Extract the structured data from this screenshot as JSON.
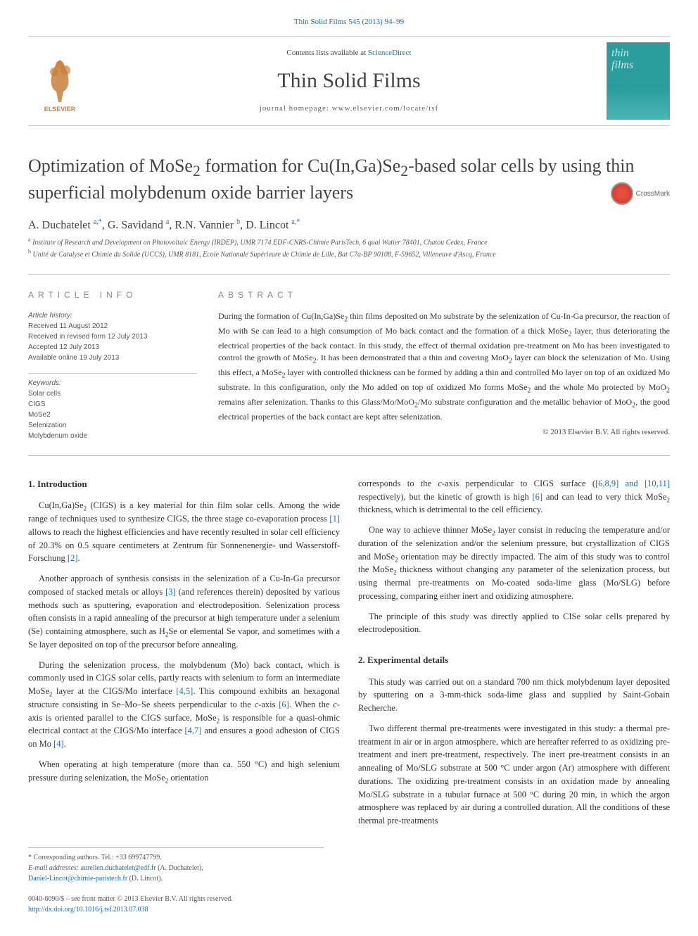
{
  "header": {
    "top_link": "Thin Solid Films 545 (2013) 94–99",
    "contents_prefix": "Contents lists available at ",
    "contents_link": "ScienceDirect",
    "journal_title": "Thin Solid Films",
    "homepage_label": "journal homepage: www.elsevier.com/locate/tsf",
    "cover_title_1": "thin",
    "cover_title_2": "films",
    "publisher": "ELSEVIER"
  },
  "article": {
    "title_html": "Optimization of MoSe<sub>2</sub> formation for Cu(In,Ga)Se<sub>2</sub>-based solar cells by using thin superficial molybdenum oxide barrier layers",
    "crossmark_label": "CrossMark",
    "authors_html": "A. Duchatelet <sup>a,*</sup>, G. Savidand <sup>a</sup>, R.N. Vannier <sup>b</sup>, D. Lincot <sup>a,*</sup>",
    "affiliations": [
      "a Institute of Research and Development on Photovoltaic Energy (IRDEP), UMR 7174 EDF-CNRS-Chimie ParisTech, 6 quai Watier 78401, Chatou Cedex, France",
      "b Unité de Catalyse et Chimie du Solide (UCCS), UMR 8181, Ecole Nationale Supérieure de Chimie de Lille, Bat C7a-BP 90108, F-59652, Villeneuve d'Ascq, France"
    ]
  },
  "info": {
    "heading": "ARTICLE INFO",
    "history_head": "Article history:",
    "history": [
      "Received 11 August 2012",
      "Received in revised form 12 July 2013",
      "Accepted 12 July 2013",
      "Available online 19 July 2013"
    ],
    "keywords_head": "Keywords:",
    "keywords": [
      "Solar cells",
      "CIGS",
      "MoSe2",
      "Selenization",
      "Molybdenum oxide"
    ]
  },
  "abstract": {
    "heading": "ABSTRACT",
    "text_html": "During the formation of Cu(In,Ga)Se<sub>2</sub> thin films deposited on Mo substrate by the selenization of Cu-In-Ga precursor, the reaction of Mo with Se can lead to a high consumption of Mo back contact and the formation of a thick MoSe<sub>2</sub> layer, thus deteriorating the electrical properties of the back contact. In this study, the effect of thermal oxidation pre-treatment on Mo has been investigated to control the growth of MoSe<sub>2</sub>. It has been demonstrated that a thin and covering MoO<sub>2</sub> layer can block the selenization of Mo. Using this effect, a MoSe<sub>2</sub> layer with controlled thickness can be formed by adding a thin and controlled Mo layer on top of an oxidized Mo substrate. In this configuration, only the Mo added on top of oxidized Mo forms MoSe<sub>2</sub> and the whole Mo protected by MoO<sub>2</sub> remains after selenization. Thanks to this Glass/Mo/MoO<sub>2</sub>/Mo substrate configuration and the metallic behavior of MoO<sub>2</sub>, the good electrical properties of the back contact are kept after selenization.",
    "copyright": "© 2013 Elsevier B.V. All rights reserved."
  },
  "body": {
    "section1_heading": "1. Introduction",
    "col1_paras_html": [
      "Cu(In,Ga)Se<sub>2</sub> (CIGS) is a key material for thin film solar cells. Among the wide range of techniques used to synthesize CIGS, the three stage co-evaporation process <span class='ref'>[1]</span> allows to reach the highest efficiencies and have recently resulted in solar cell efficiency of 20.3% on 0.5 square centimeters at Zentrum für Sonnenenergie- und Wasserstoff-Forschung <span class='ref'>[2]</span>.",
      "Another approach of synthesis consists in the selenization of a Cu-In-Ga precursor composed of stacked metals or alloys <span class='ref'>[3]</span> (and references therein) deposited by various methods such as sputtering, evaporation and electrodeposition. Selenization process often consists in a rapid annealing of the precursor at high temperature under a selenium (Se) containing atmosphere, such as H<sub>2</sub>Se or elemental Se vapor, and sometimes with a Se layer deposited on top of the precursor before annealing.",
      "During the selenization process, the molybdenum (Mo) back contact, which is commonly used in CIGS solar cells, partly reacts with selenium to form an intermediate MoSe<sub>2</sub> layer at the CIGS/Mo interface <span class='ref'>[4,5]</span>. This compound exhibits an hexagonal structure consisting in Se–Mo–Se sheets perpendicular to the <i>c</i>-axis <span class='ref'>[6]</span>. When the <i>c</i>-axis is oriented parallel to the CIGS surface, MoSe<sub>2</sub> is responsible for a quasi-ohmic electrical contact at the CIGS/Mo interface <span class='ref'>[4,7]</span> and ensures a good adhesion of CIGS on Mo <span class='ref'>[4]</span>.",
      "When operating at high temperature (more than ca. 550 °C) and high selenium pressure during selenization, the MoSe<sub>2</sub> orientation"
    ],
    "col2_top_paras_html": [
      "corresponds to the <i>c</i>-axis perpendicular to CIGS surface (<span class='ref'>[6,8,9] and [10,11]</span> respectively), but the kinetic of growth is high <span class='ref'>[6]</span> and can lead to very thick MoSe<sub>2</sub> thickness, which is detrimental to the cell efficiency.",
      "One way to achieve thinner MoSe<sub>2</sub> layer consist in reducing the temperature and/or duration of the selenization and/or the selenium pressure, but crystallization of CIGS and MoSe<sub>2</sub> orientation may be directly impacted. The aim of this study was to control the MoSe<sub>2</sub> thickness without changing any parameter of the selenization process, but using thermal pre-treatments on Mo-coated soda-lime glass (Mo/SLG) before processing, comparing either inert and oxidizing atmosphere.",
      "The principle of this study was directly applied to CISe solar cells prepared by electrodeposition."
    ],
    "section2_heading": "2. Experimental details",
    "col2_sec2_paras_html": [
      "This study was carried out on a standard 700 nm thick molybdenum layer deposited by sputtering on a 3-mm-thick soda-lime glass and supplied by Saint-Gobain Recherche.",
      "Two different thermal pre-treatments were investigated in this study: a thermal pre-treatment in air or in argon atmosphere, which are hereafter referred to as oxidizing pre-treatment and inert pre-treatment, respectively. The inert pre-treatment consists in an annealing of Mo/SLG substrate at 500 °C under argon (Ar) atmosphere with different durations. The oxidizing pre-treatment consists in an oxidation made by annealing Mo/SLG substrate in a tubular furnace at 500 °C during 20 min, in which the argon atmosphere was replaced by air during a controlled duration. All the conditions of these thermal pre-treatments"
    ]
  },
  "footnotes": {
    "corresponding": "* Corresponding authors. Tel.: +33 699747799.",
    "email_label": "E-mail addresses: ",
    "email1": "aurelien.duchatelet@edf.fr",
    "email1_name": " (A. Duchatelet),",
    "email2": "Daniel-Lincot@chimie-paristech.fr",
    "email2_name": " (D. Lincot)."
  },
  "bottom": {
    "issn": "0040-6090/$ – see front matter © 2013 Elsevier B.V. All rights reserved.",
    "doi": "http://dx.doi.org/10.1016/j.tsf.2013.07.038"
  },
  "colors": {
    "link": "#1a6bb3",
    "text": "#333333",
    "heading_gray": "#888888",
    "cover_bg": "#2a9d9d",
    "crossmark_red": "#e74c3c"
  }
}
